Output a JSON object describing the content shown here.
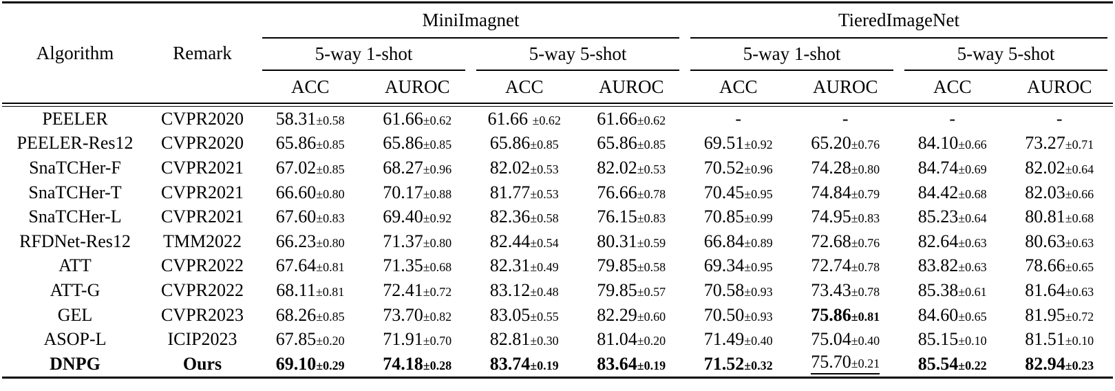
{
  "page": {
    "background_color": "#ffffff",
    "text_color": "#000000"
  },
  "table": {
    "headers": {
      "algorithm": "Algorithm",
      "remark": "Remark",
      "dataset_1": "MiniImagnet",
      "dataset_2": "TieredImageNet",
      "shot_1": "5-way 1-shot",
      "shot_5": "5-way 5-shot",
      "metric_acc": "ACC",
      "metric_auroc": "AUROC"
    },
    "column_order": [
      "Algorithm",
      "Remark",
      "Mini 1-shot ACC",
      "Mini 1-shot AUROC",
      "Mini 5-shot ACC",
      "Mini 5-shot AUROC",
      "Tiered 1-shot ACC",
      "Tiered 1-shot AUROC",
      "Tiered 5-shot ACC",
      "Tiered 5-shot AUROC"
    ],
    "rows": [
      {
        "algorithm": "PEELER",
        "remark": "CVPR2020",
        "values": [
          "58.31±0.58",
          "61.66±0.62",
          "61.66 ±0.62",
          "61.66±0.62",
          "-",
          "-",
          "-",
          "-"
        ],
        "bold": [],
        "underline": [],
        "row_bold": false
      },
      {
        "algorithm": "PEELER-Res12",
        "remark": "CVPR2020",
        "values": [
          "65.86±0.85",
          "65.86±0.85",
          "65.86±0.85",
          "65.86±0.85",
          "69.51±0.92",
          "65.20±0.76",
          "84.10±0.66",
          "73.27±0.71"
        ],
        "bold": [],
        "underline": [],
        "row_bold": false
      },
      {
        "algorithm": "SnaTCHer-F",
        "remark": "CVPR2021",
        "values": [
          "67.02±0.85",
          "68.27±0.96",
          "82.02±0.53",
          "82.02±0.53",
          "70.52±0.96",
          "74.28±0.80",
          "84.74±0.69",
          "82.02±0.64"
        ],
        "bold": [],
        "underline": [],
        "row_bold": false
      },
      {
        "algorithm": "SnaTCHer-T",
        "remark": "CVPR2021",
        "values": [
          "66.60±0.80",
          "70.17±0.88",
          "81.77±0.53",
          "76.66±0.78",
          "70.45±0.95",
          "74.84±0.79",
          "84.42±0.68",
          "82.03±0.66"
        ],
        "bold": [],
        "underline": [],
        "row_bold": false
      },
      {
        "algorithm": "SnaTCHer-L",
        "remark": "CVPR2021",
        "values": [
          "67.60±0.83",
          "69.40±0.92",
          "82.36±0.58",
          "76.15±0.83",
          "70.85±0.99",
          "74.95±0.83",
          "85.23±0.64",
          "80.81±0.68"
        ],
        "bold": [],
        "underline": [],
        "row_bold": false
      },
      {
        "algorithm": "RFDNet-Res12",
        "remark": "TMM2022",
        "values": [
          "66.23±0.80",
          "71.37±0.80",
          "82.44±0.54",
          "80.31±0.59",
          "66.84±0.89",
          "72.68±0.76",
          "82.64±0.63",
          "80.63±0.63"
        ],
        "bold": [],
        "underline": [],
        "row_bold": false
      },
      {
        "algorithm": "ATT",
        "remark": "CVPR2022",
        "values": [
          "67.64±0.81",
          "71.35±0.68",
          "82.31±0.49",
          "79.85±0.58",
          "69.34±0.95",
          "72.74±0.78",
          "83.82±0.63",
          "78.66±0.65"
        ],
        "bold": [],
        "underline": [],
        "row_bold": false
      },
      {
        "algorithm": "ATT-G",
        "remark": "CVPR2022",
        "values": [
          "68.11±0.81",
          "72.41±0.72",
          "83.12±0.48",
          "79.85±0.57",
          "70.58±0.93",
          "73.43±0.78",
          "85.38±0.61",
          "81.64±0.63"
        ],
        "bold": [],
        "underline": [],
        "row_bold": false
      },
      {
        "algorithm": "GEL",
        "remark": "CVPR2023",
        "values": [
          "68.26±0.85",
          "73.70±0.82",
          "83.05±0.55",
          "82.29±0.60",
          "70.50±0.93",
          "75.86±0.81",
          "84.60±0.65",
          "81.95±0.72"
        ],
        "bold": [
          5
        ],
        "underline": [],
        "row_bold": false
      },
      {
        "algorithm": "ASOP-L",
        "remark": "ICIP2023",
        "values": [
          "67.85±0.20",
          "71.91±0.70",
          "82.81±0.30",
          "81.04±0.20",
          "71.49±0.40",
          "75.04±0.40",
          "85.15±0.10",
          "81.51±0.10"
        ],
        "bold": [],
        "underline": [],
        "row_bold": false
      },
      {
        "algorithm": "DNPG",
        "remark": "Ours",
        "values": [
          "69.10±0.29",
          "74.18±0.28",
          "83.74±0.19",
          "83.64±0.19",
          "71.52±0.32",
          "75.70±0.21",
          "85.54±0.22",
          "82.94±0.23"
        ],
        "bold": [
          0,
          1,
          2,
          3,
          4,
          6,
          7
        ],
        "underline": [
          5
        ],
        "row_bold": true
      }
    ]
  }
}
